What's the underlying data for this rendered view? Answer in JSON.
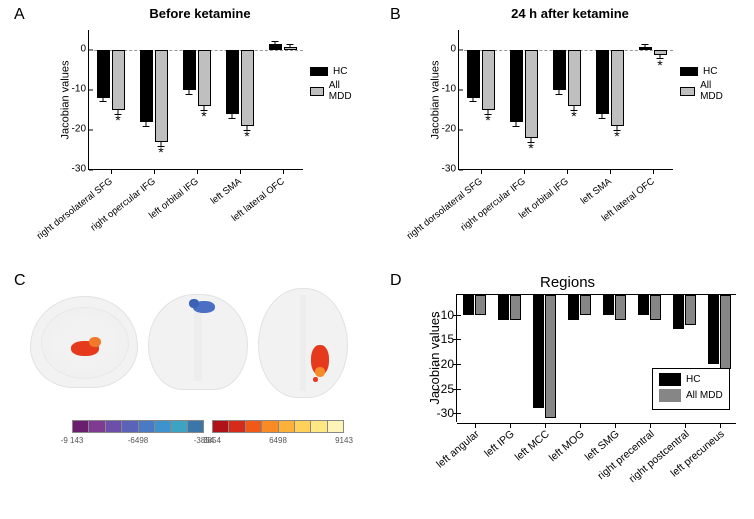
{
  "panelA": {
    "label": "A",
    "title": "Before ketamine",
    "ylabel": "Jacobian values",
    "ylim": [
      -30,
      5
    ],
    "yticks": [
      -30,
      -20,
      -10,
      0
    ],
    "categories": [
      "right dorsolateral SFG",
      "right opercular IFG",
      "left orbital IFG",
      "left SMA",
      "left lateral OFC"
    ],
    "series": {
      "hc": "HC",
      "mdd": "All  MDD"
    },
    "colors": {
      "hc": "#000000",
      "mdd": "#bfbfbf"
    },
    "hc": [
      -12,
      -18,
      -10,
      -16,
      1.5
    ],
    "mdd": [
      -15,
      -23,
      -14,
      -19,
      0.8
    ],
    "hc_err": [
      0.8,
      1.0,
      0.9,
      0.9,
      0.7
    ],
    "mdd_err": [
      0.9,
      1.0,
      0.9,
      0.9,
      0.8
    ],
    "sig_mdd": [
      true,
      true,
      true,
      true,
      false
    ]
  },
  "panelB": {
    "label": "B",
    "title": "24 h after ketamine",
    "ylabel": "Jacobian values",
    "ylim": [
      -30,
      5
    ],
    "yticks": [
      -30,
      -20,
      -10,
      0
    ],
    "categories": [
      "right dorsolateral SFG",
      "right opercular IFG",
      "left orbital IFG",
      "left SMA",
      "left lateral OFC"
    ],
    "series": {
      "hc": "HC",
      "mdd": "All  MDD"
    },
    "hc": [
      -12,
      -18,
      -10,
      -16,
      0.7
    ],
    "mdd": [
      -15,
      -22,
      -14,
      -19,
      -1.2
    ],
    "hc_err": [
      0.8,
      1.0,
      0.9,
      0.9,
      0.7
    ],
    "mdd_err": [
      0.9,
      1.0,
      0.9,
      0.9,
      0.8
    ],
    "sig_mdd": [
      true,
      true,
      true,
      true,
      true
    ]
  },
  "panelC": {
    "label": "C",
    "colorbar_neg": [
      "#6b1e6e",
      "#7f3a92",
      "#6d4ea8",
      "#5a63b8",
      "#4a7ac3",
      "#3e93cd",
      "#3da3c2",
      "#3a77a8"
    ],
    "colorbar_pos": [
      "#b01217",
      "#d62a1a",
      "#ef5a1a",
      "#f88b23",
      "#fcb13a",
      "#ffd158",
      "#ffe882",
      "#fff4b8"
    ],
    "tick_vals_neg": [
      "-9 143",
      "-6498",
      "-3854"
    ],
    "tick_vals_pos": [
      "3854",
      "6498",
      "9143"
    ]
  },
  "panelD": {
    "label": "D",
    "title": "Regions",
    "ylabel": "Jacobian values",
    "ylim": [
      -32,
      -6
    ],
    "yticks": [
      -10,
      -15,
      -20,
      -25,
      -30
    ],
    "categories": [
      "left angular",
      "left IPG",
      "left MCC",
      "left MOG",
      "left SMG",
      "right precentral",
      "right postcentral",
      "left precuneus"
    ],
    "series": {
      "hc": "HC",
      "mdd": "All MDD"
    },
    "colors": {
      "hc": "#000000",
      "mdd": "#868686"
    },
    "hc": [
      -10,
      -11,
      -29,
      -11,
      -10,
      -10,
      -13,
      -20
    ],
    "mdd": [
      -10,
      -11,
      -31,
      -10,
      -11,
      -11,
      -12,
      -21
    ]
  }
}
